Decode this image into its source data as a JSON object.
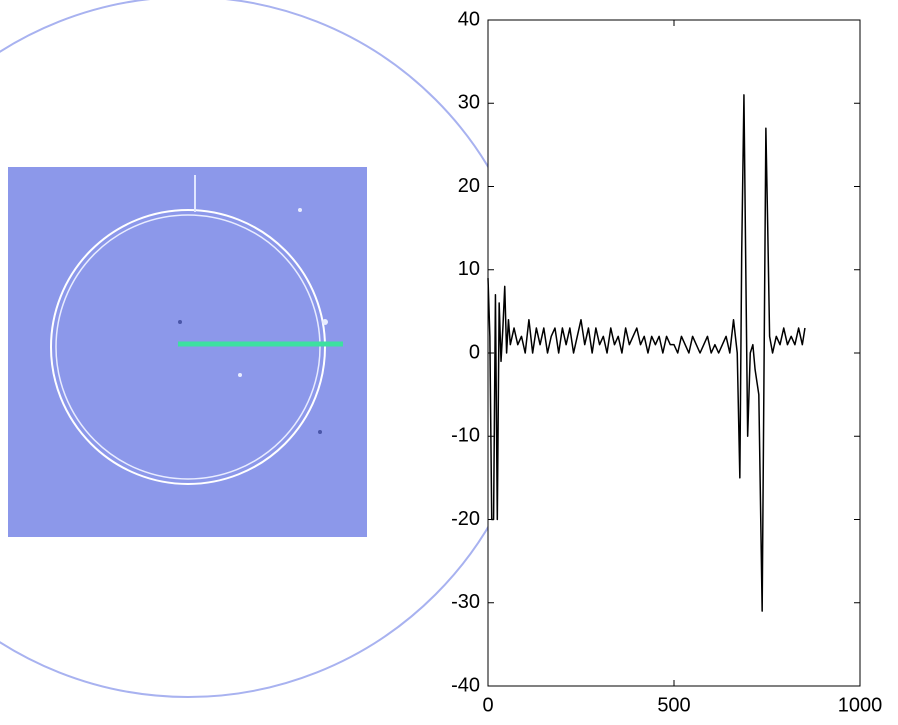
{
  "chart_data": {
    "type": "line",
    "x": [
      0,
      5,
      10,
      15,
      20,
      25,
      30,
      35,
      40,
      45,
      50,
      55,
      60,
      70,
      80,
      90,
      100,
      110,
      120,
      130,
      140,
      150,
      160,
      170,
      180,
      190,
      200,
      210,
      220,
      230,
      240,
      250,
      260,
      270,
      280,
      290,
      300,
      310,
      320,
      330,
      340,
      350,
      360,
      370,
      380,
      390,
      400,
      410,
      420,
      430,
      440,
      450,
      460,
      470,
      480,
      490,
      500,
      510,
      520,
      530,
      540,
      550,
      560,
      570,
      580,
      590,
      600,
      610,
      620,
      630,
      640,
      650,
      660,
      670,
      677,
      682,
      688,
      693,
      698,
      705,
      712,
      718,
      728,
      737,
      747,
      752,
      757,
      765,
      775,
      785,
      795,
      805,
      815,
      825,
      835,
      845,
      852
    ],
    "values": [
      9,
      2,
      -20,
      -20,
      7,
      -20,
      6,
      -1,
      3,
      8,
      0,
      4,
      1,
      3,
      1,
      2,
      0,
      4,
      0,
      3,
      1,
      3,
      0,
      2,
      3,
      0,
      3,
      1,
      3,
      0,
      2,
      4,
      1,
      3,
      0,
      3,
      1,
      2,
      0,
      3,
      1,
      2,
      0,
      3,
      1,
      2,
      3,
      1,
      2,
      0,
      2,
      1,
      2,
      0,
      2,
      1,
      1,
      0,
      2,
      1,
      0,
      2,
      1,
      0,
      1,
      2,
      0,
      1,
      0,
      1,
      2,
      0,
      4,
      0,
      -15,
      12,
      31,
      10,
      -10,
      0,
      1,
      -2,
      -5,
      -31,
      27,
      15,
      2,
      0,
      2,
      1,
      3,
      1,
      2,
      1,
      3,
      1,
      3
    ],
    "color": "#000000",
    "xlim": [
      0,
      1000
    ],
    "ylim": [
      -40,
      40
    ],
    "xticks": [
      0,
      500,
      1000
    ],
    "yticks": [
      -40,
      -30,
      -20,
      -10,
      0,
      10,
      20,
      30,
      40
    ],
    "grid": false
  }
}
